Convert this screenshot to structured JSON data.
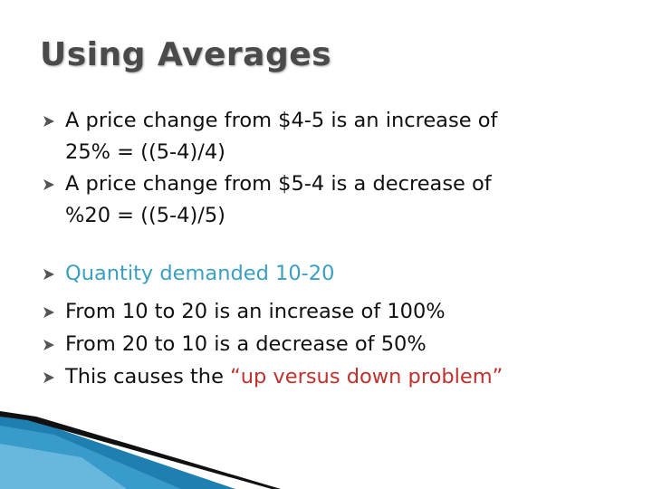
{
  "title": "Using Averages",
  "group1": [
    {
      "lines": [
        "A price change from $4-5 is an increase of",
        "25% = ((5-4)/4)"
      ]
    },
    {
      "lines": [
        "A price change from $5-4 is a decrease of",
        "%20 = ((5-4)/5)"
      ]
    }
  ],
  "group2": [
    {
      "text": "Quantity demanded 10-20"
    },
    {
      "text": "From 10 to 20 is an increase of 100%"
    },
    {
      "text": "From 20 to 10 is a decrease of 50%"
    },
    {
      "text": "This causes the",
      "highlight": "“up versus down problem”"
    }
  ]
}
